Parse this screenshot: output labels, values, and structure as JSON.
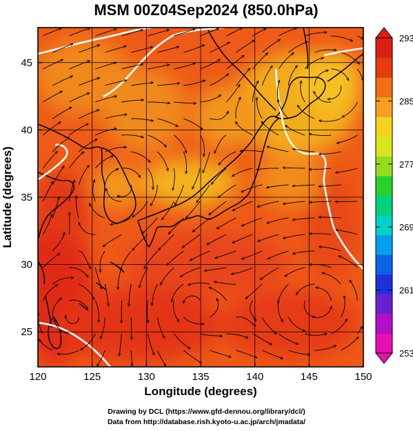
{
  "title": "MSM 00Z04Sep2024 (850.0hPa)",
  "x_axis": {
    "label": "Longitude (degrees)",
    "min": 120,
    "max": 150,
    "ticks": [
      120,
      125,
      130,
      135,
      140,
      145,
      150
    ]
  },
  "y_axis": {
    "label": "Latitude  (degrees)",
    "min": 22.4,
    "max": 47.6,
    "ticks": [
      25,
      30,
      35,
      40,
      45
    ]
  },
  "colorbar": {
    "min": 253,
    "max": 293,
    "labels": [
      293,
      285,
      277,
      269,
      261,
      253
    ],
    "colors": [
      "#e60fb4",
      "#b40fc8",
      "#6a1fd2",
      "#1e32dc",
      "#0a64e6",
      "#00a0f0",
      "#00d2c8",
      "#00d27d",
      "#28d228",
      "#96dc1e",
      "#d7e61e",
      "#f5d21e",
      "#f5a01e",
      "#f06e14",
      "#e63c0f",
      "#dc1e14"
    ]
  },
  "credits": {
    "line1": "Drawing by DCL (https://www.gfd-dennou.org/library/dcl/)",
    "line2": "Data from http://database.rish.kyoto-u.ac.jp/arch/jmadata/"
  },
  "colors": {
    "field_base": "#ee5a18",
    "warm": "#e42818",
    "cool": "#f5b21e",
    "coast": "#000000",
    "streamline": "#000000",
    "contour": "#ffffff"
  }
}
